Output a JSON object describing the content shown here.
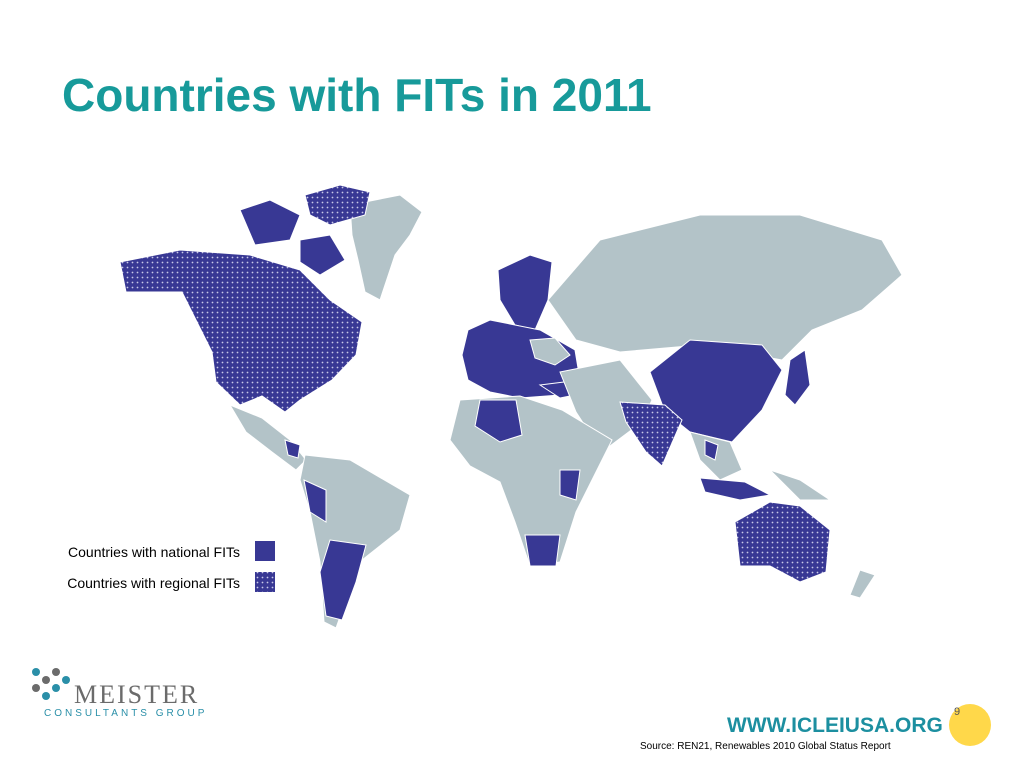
{
  "title": "Countries with FITs in 2011",
  "legend": [
    "Countries with national FITs",
    "Countries with regional FITs"
  ],
  "logo": {
    "name": "MEISTER",
    "subtitle": "CONSULTANTS GROUP"
  },
  "page_number": "9",
  "website": "WWW.ICLEIUSA.ORG",
  "source": "Source: REN21, Renewables 2010 Global Status Report"
}
